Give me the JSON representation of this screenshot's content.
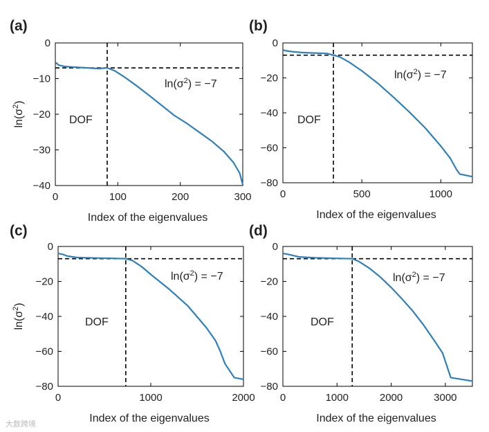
{
  "watermark": "大数跨境",
  "chart_data": [
    {
      "id": "a",
      "type": "line",
      "panel_label": "(a)",
      "xlabel": "Index of the eigenvalues",
      "ylabel": "ln(σ²)",
      "ylabel_base": "ln(σ",
      "ylabel_sup": "2",
      "ylabel_close": ")",
      "xlim": [
        0,
        300
      ],
      "ylim": [
        -40,
        0
      ],
      "xticks": [
        0,
        100,
        200,
        300
      ],
      "yticks": [
        0,
        -10,
        -20,
        -30,
        -40
      ],
      "threshold_y": -7,
      "dof_x": 83,
      "dof_label": "DOF",
      "annotation": "ln(σ²) = −7",
      "annotation_base": "ln(σ",
      "annotation_sup": "2",
      "annotation_rest": ") = −7",
      "series": [
        {
          "name": "ln(σ²)",
          "x": [
            1,
            5,
            15,
            30,
            50,
            70,
            83,
            95,
            110,
            130,
            150,
            170,
            190,
            210,
            230,
            250,
            270,
            285,
            295,
            300
          ],
          "y": [
            -5.5,
            -6.2,
            -6.6,
            -6.8,
            -7.0,
            -7.2,
            -7.0,
            -7.8,
            -9.5,
            -12.0,
            -14.7,
            -17.5,
            -20.3,
            -22.5,
            -25.0,
            -27.5,
            -30.5,
            -33.5,
            -36.5,
            -39.8
          ]
        }
      ]
    },
    {
      "id": "b",
      "type": "line",
      "panel_label": "(b)",
      "xlabel": "Index of the eigenvalues",
      "ylabel": "",
      "xlim": [
        0,
        1200
      ],
      "ylim": [
        -80,
        0
      ],
      "xticks": [
        0,
        500,
        1000
      ],
      "yticks": [
        0,
        -20,
        -40,
        -60,
        -80
      ],
      "threshold_y": -7,
      "dof_x": 320,
      "dof_label": "DOF",
      "annotation": "ln(σ²) = −7",
      "annotation_base": "ln(σ",
      "annotation_sup": "2",
      "annotation_rest": ") = −7",
      "series": [
        {
          "name": "ln(σ²)",
          "x": [
            0,
            20,
            60,
            120,
            200,
            280,
            320,
            360,
            420,
            500,
            600,
            700,
            800,
            900,
            1000,
            1060,
            1100,
            1120,
            1200
          ],
          "y": [
            -4,
            -4.5,
            -5,
            -5.5,
            -5.8,
            -6,
            -7,
            -8,
            -11,
            -16,
            -23,
            -31,
            -39.5,
            -48.5,
            -59,
            -66,
            -72.5,
            -75,
            -76.5
          ]
        }
      ]
    },
    {
      "id": "c",
      "type": "line",
      "panel_label": "(c)",
      "xlabel": "Index of the eigenvalues",
      "ylabel": "ln(σ²)",
      "ylabel_base": "ln(σ",
      "ylabel_sup": "2",
      "ylabel_close": ")",
      "xlim": [
        0,
        2000
      ],
      "ylim": [
        -80,
        0
      ],
      "xticks": [
        0,
        1000,
        2000
      ],
      "yticks": [
        0,
        -20,
        -40,
        -60,
        -80
      ],
      "threshold_y": -7,
      "dof_x": 730,
      "dof_label": "DOF",
      "annotation": "ln(σ²) = −7",
      "annotation_base": "ln(σ",
      "annotation_sup": "2",
      "annotation_rest": ") = −7",
      "series": [
        {
          "name": "ln(σ²)",
          "x": [
            0,
            50,
            100,
            200,
            400,
            600,
            730,
            800,
            900,
            1000,
            1200,
            1400,
            1600,
            1700,
            1750,
            1800,
            1900,
            2000
          ],
          "y": [
            -4,
            -4.5,
            -5.5,
            -6.3,
            -6.6,
            -6.8,
            -7,
            -8,
            -11.5,
            -16,
            -24.5,
            -34,
            -46.5,
            -54,
            -60,
            -67,
            -75,
            -76
          ]
        }
      ]
    },
    {
      "id": "d",
      "type": "line",
      "panel_label": "(d)",
      "xlabel": "Index of the eigenvalues",
      "ylabel": "",
      "xlim": [
        0,
        3500
      ],
      "ylim": [
        -80,
        0
      ],
      "xticks": [
        0,
        1000,
        2000,
        3000
      ],
      "yticks": [
        0,
        -20,
        -40,
        -60,
        -80
      ],
      "threshold_y": -7,
      "dof_x": 1280,
      "dof_label": "DOF",
      "annotation": "ln(σ²) = −7",
      "annotation_base": "ln(σ",
      "annotation_sup": "2",
      "annotation_rest": ") = −7",
      "series": [
        {
          "name": "ln(σ²)",
          "x": [
            0,
            100,
            300,
            600,
            1000,
            1280,
            1400,
            1600,
            1800,
            2000,
            2200,
            2400,
            2600,
            2800,
            2950,
            3100,
            3500
          ],
          "y": [
            -4,
            -4.5,
            -6,
            -6.5,
            -6.8,
            -7,
            -8.5,
            -12.5,
            -17.5,
            -23.5,
            -30,
            -37,
            -45,
            -54,
            -61,
            -75,
            -77
          ]
        }
      ]
    }
  ]
}
